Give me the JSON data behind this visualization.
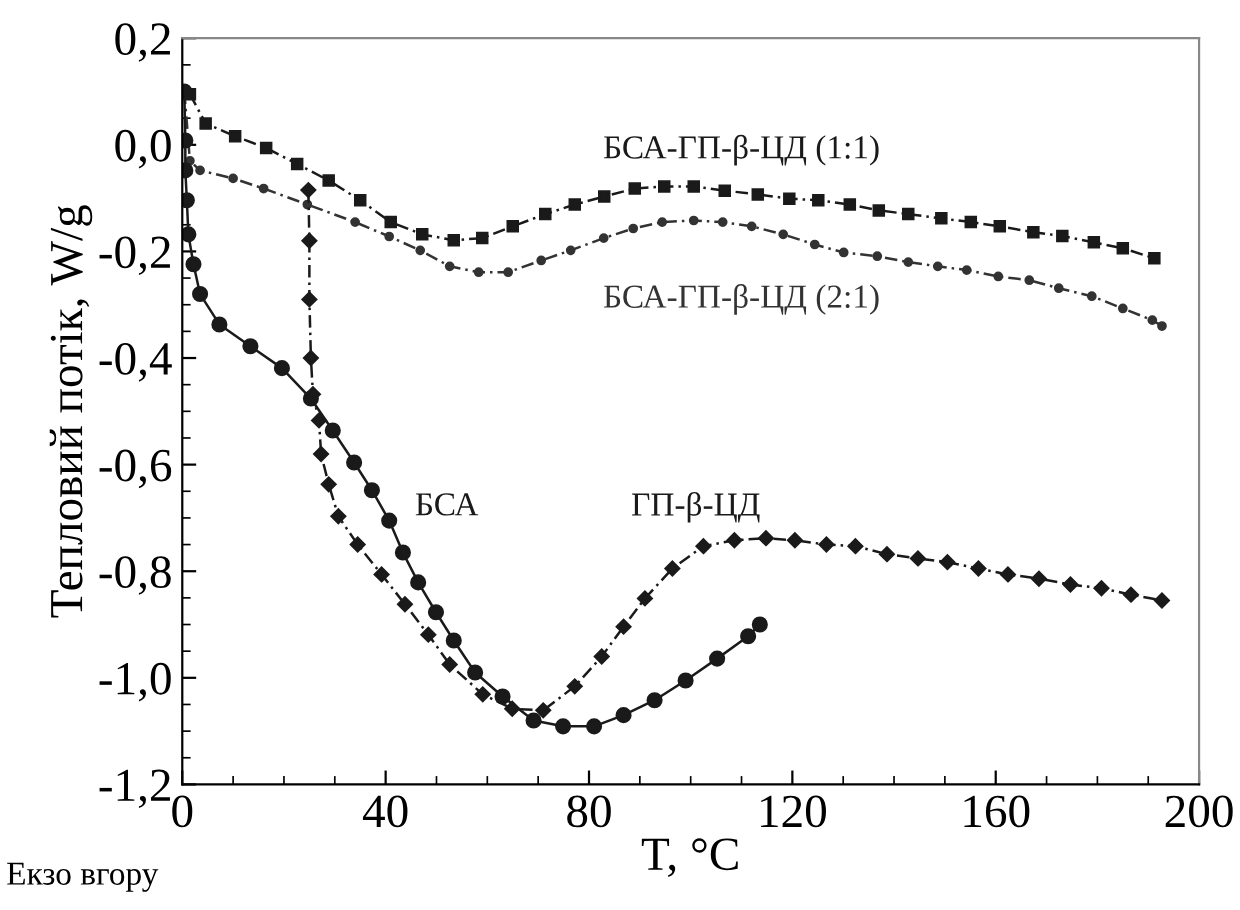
{
  "chart_data": {
    "type": "line",
    "xlabel": "T, °C",
    "ylabel": "Тепловий потік, W/g",
    "annotations": [
      "Екзо вгору"
    ],
    "xlim": [
      0,
      200
    ],
    "xticks": [
      0,
      40,
      80,
      120,
      160,
      200
    ],
    "ylim": [
      -1.2,
      0.2
    ],
    "yticks": [
      {
        "value": -1.2,
        "label": "-1,2"
      },
      {
        "value": -1.0,
        "label": "-1,0"
      },
      {
        "value": -0.8,
        "label": "-0,8"
      },
      {
        "value": -0.6,
        "label": "-0,6"
      },
      {
        "value": -0.4,
        "label": "-0,4"
      },
      {
        "value": -0.2,
        "label": "-0,2"
      },
      {
        "value": 0.0,
        "label": "0,0"
      },
      {
        "value": 0.2,
        "label": "0,2"
      }
    ],
    "grid": false,
    "legend": false,
    "series": [
      {
        "name": "БСА-ГП-β-ЦД (1:1)",
        "color": "#1a1a1a",
        "marker": "square",
        "line_style": "dashed",
        "x": [
          1.5,
          4.6,
          10.4,
          16.5,
          22.6,
          28.8,
          35,
          41,
          47.2,
          53.4,
          59,
          65,
          71.4,
          77.2,
          83,
          89,
          94.8,
          100.6,
          106.7,
          113.2,
          119.4,
          125.1,
          131.3,
          137,
          142.8,
          149.3,
          155.1,
          160.8,
          167.4,
          173.1,
          179.3,
          185,
          191.2
        ],
        "values": [
          0.095,
          0.04,
          0.016,
          -0.006,
          -0.036,
          -0.067,
          -0.104,
          -0.145,
          -0.168,
          -0.179,
          -0.175,
          -0.153,
          -0.13,
          -0.112,
          -0.097,
          -0.082,
          -0.078,
          -0.078,
          -0.086,
          -0.093,
          -0.101,
          -0.104,
          -0.112,
          -0.123,
          -0.13,
          -0.138,
          -0.145,
          -0.153,
          -0.164,
          -0.171,
          -0.183,
          -0.194,
          -0.213
        ]
      },
      {
        "name": "БСА-ГП-β-ЦД (2:1)",
        "color": "#333333",
        "marker": "circle",
        "line_style": "dashed",
        "x": [
          0.4,
          1.5,
          3.5,
          10,
          16,
          24.6,
          34,
          40.7,
          46.8,
          52.6,
          58.3,
          64.1,
          70.6,
          76.4,
          82.9,
          88.7,
          94.4,
          100.6,
          106.3,
          112,
          118.2,
          124.4,
          130.1,
          136.7,
          142.8,
          148.6,
          154.3,
          160.5,
          166.6,
          172.4,
          178.9,
          185,
          190.8,
          192.7
        ],
        "values": [
          0.1,
          -0.03,
          -0.048,
          -0.063,
          -0.082,
          -0.112,
          -0.145,
          -0.172,
          -0.198,
          -0.228,
          -0.239,
          -0.239,
          -0.217,
          -0.198,
          -0.175,
          -0.157,
          -0.145,
          -0.142,
          -0.145,
          -0.153,
          -0.168,
          -0.187,
          -0.202,
          -0.209,
          -0.22,
          -0.228,
          -0.235,
          -0.247,
          -0.254,
          -0.269,
          -0.284,
          -0.307,
          -0.329,
          -0.34
        ]
      },
      {
        "name": "БСА",
        "color": "#1a1a1a",
        "marker": "circle",
        "line_style": "solid",
        "x": [
          0.4,
          0.6,
          0.6,
          0.9,
          1.2,
          2.2,
          3.5,
          7.3,
          13.4,
          19.6,
          25.3,
          29.6,
          33.8,
          37.3,
          40.7,
          43.4,
          46.4,
          49.9,
          53.4,
          57.6,
          63,
          69.1,
          74.9,
          81,
          86.8,
          92.9,
          99,
          105.2,
          111.3,
          113.6
        ],
        "values": [
          0.1,
          0.008,
          -0.048,
          -0.104,
          -0.168,
          -0.224,
          -0.28,
          -0.337,
          -0.378,
          -0.419,
          -0.476,
          -0.536,
          -0.596,
          -0.648,
          -0.705,
          -0.765,
          -0.821,
          -0.877,
          -0.93,
          -0.99,
          -1.035,
          -1.08,
          -1.091,
          -1.091,
          -1.07,
          -1.042,
          -1.005,
          -0.964,
          -0.922,
          -0.9
        ]
      },
      {
        "name": "ГП-β-ЦД",
        "color": "#1a1a1a",
        "marker": "diamond",
        "line_style": "dashed",
        "x": [
          24.8,
          25,
          25,
          25.3,
          25.7,
          26.9,
          27.3,
          28.8,
          30.7,
          34.5,
          39.2,
          43.8,
          48.4,
          52.6,
          59.1,
          64.9,
          71,
          77.2,
          82.5,
          86.8,
          91,
          96.4,
          102.5,
          108.6,
          114.8,
          120.5,
          126.7,
          132.4,
          138.6,
          144.7,
          150.5,
          156.6,
          162.4,
          168.5,
          174.7,
          180.8,
          186.6,
          192.7
        ],
        "values": [
          -0.085,
          -0.18,
          -0.29,
          -0.4,
          -0.468,
          -0.517,
          -0.58,
          -0.637,
          -0.697,
          -0.75,
          -0.806,
          -0.862,
          -0.919,
          -0.975,
          -1.031,
          -1.058,
          -1.061,
          -1.016,
          -0.96,
          -0.904,
          -0.851,
          -0.795,
          -0.753,
          -0.742,
          -0.738,
          -0.742,
          -0.75,
          -0.753,
          -0.768,
          -0.776,
          -0.783,
          -0.795,
          -0.806,
          -0.814,
          -0.825,
          -0.832,
          -0.844,
          -0.855
        ]
      }
    ]
  }
}
